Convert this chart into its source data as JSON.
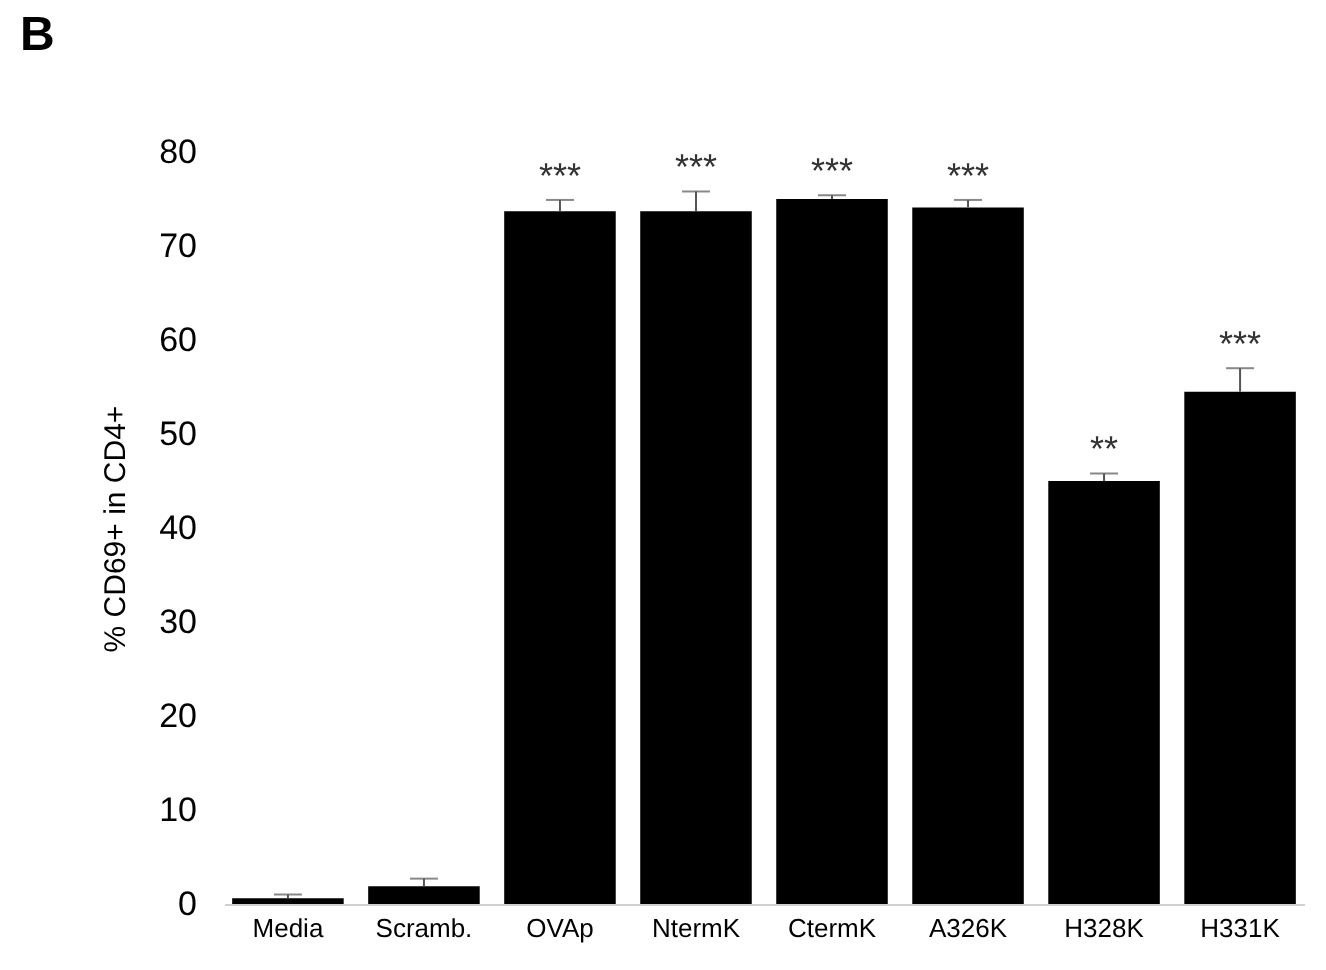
{
  "chart_data": {
    "type": "bar",
    "ylabel": "% CD69+ in CD4+",
    "categories": [
      "Media",
      "Scramb.",
      "OVAp",
      "NtermK",
      "CtermK",
      "A326K",
      "H328K",
      "H331K"
    ],
    "values": [
      0.6,
      1.9,
      73.7,
      73.7,
      75.0,
      74.1,
      45.0,
      54.5
    ],
    "errors": [
      [
        0.6,
        1.0
      ],
      [
        1.9,
        2.7
      ],
      [
        73.7,
        74.9
      ],
      [
        73.7,
        75.8
      ],
      [
        75.0,
        75.4
      ],
      [
        74.1,
        74.9
      ],
      [
        45.0,
        45.8
      ],
      [
        54.5,
        57.0
      ]
    ],
    "color": "#000000",
    "ylim": [
      0,
      80
    ],
    "yticks": [
      0,
      10,
      20,
      30,
      40,
      50,
      60,
      70,
      80
    ],
    "grid": false,
    "annotations": [
      "B",
      {
        "text": "***",
        "x": "OVAp",
        "y": 73.7
      },
      {
        "text": "***",
        "x": "NtermK",
        "y": 73.7
      },
      {
        "text": "***",
        "x": "CtermK",
        "y": 75.0
      },
      {
        "text": "***",
        "x": "A326K",
        "y": 74.1
      },
      {
        "text": "**",
        "x": "H328K",
        "y": 45.0
      },
      {
        "text": "***",
        "x": "H331K",
        "y": 54.5
      }
    ]
  }
}
